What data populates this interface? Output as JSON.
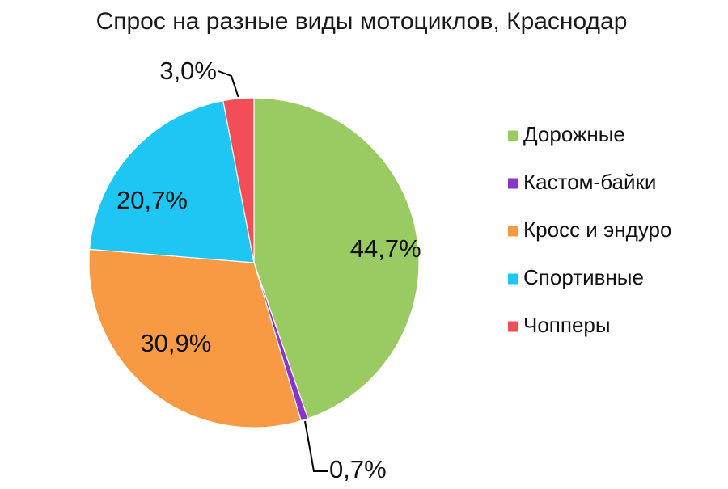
{
  "chart_data": {
    "type": "pie",
    "title": "Спрос на разные виды мотоциклов, Краснодар",
    "legend_position": "right",
    "start_angle_deg": 0,
    "direction": "clockwise",
    "categories": [
      "Дорожные",
      "Кастом-байки",
      "Кросс и эндуро",
      "Спортивные",
      "Чопперы"
    ],
    "values": [
      44.7,
      0.7,
      30.9,
      20.7,
      3.0
    ],
    "labels": [
      "44,7%",
      "0,7%",
      "30,9%",
      "20,7%",
      "3,0%"
    ],
    "colors": [
      "#9ACB63",
      "#8A35C8",
      "#F89A43",
      "#1EC6F4",
      "#F24E57"
    ]
  }
}
